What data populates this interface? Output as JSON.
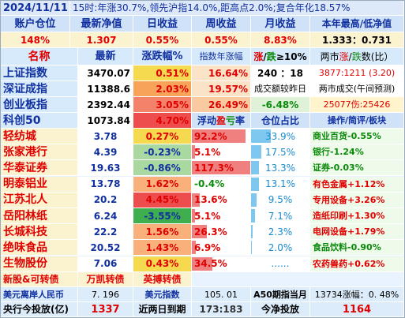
{
  "header": {
    "date": "2024/11/11",
    "summary": "15时:年涨30.7%,领先沪指14.0%,距高点2.0%;复合年化18.57%"
  },
  "account": {
    "headers": [
      "账户仓位",
      "最新净值",
      "日收益",
      "周收益",
      "月收益",
      "本年最高/低净值"
    ],
    "values": [
      "148%",
      "1.307",
      "0.55%",
      "0.55%",
      "8.83%",
      "1.333：0.731"
    ]
  },
  "index_header": {
    "name": "名称",
    "latest": "最新",
    "change_pct": "涨跌幅%",
    "year_change": "指数年涨幅",
    "up_down_prefix": "涨",
    "up_down_sep": "/",
    "up_down_mid": "跌",
    "up_down_suffix": "≥10%",
    "count_prefix": "两市",
    "count_up": "涨",
    "count_sep": "/",
    "count_down": "跌",
    "count_suffix": "数(比）"
  },
  "indices": [
    {
      "name": "上证指数",
      "latest": "3470.07",
      "chg": "0.51%",
      "year": "16.64%",
      "info": "240 ：18",
      "info2": "3877:1211 (3.20)"
    },
    {
      "name": "深证成指",
      "latest": "11388.6",
      "chg": "2.03%",
      "year": "19.57%",
      "info": "成交额较昨日",
      "info2": "两市成交(午间预测)"
    },
    {
      "name": "创业板指",
      "latest": "2392.44",
      "chg": "3.05%",
      "year": "26.49%",
      "info": "-6.48%",
      "info2": "25077伤:25426"
    },
    {
      "name": "科创50",
      "latest": "1073.84",
      "chg": "4.70%"
    }
  ],
  "holdings_header": {
    "float_prefix": "浮动",
    "float_profit": "盈",
    "float_loss": "亏",
    "float_suffix": "率",
    "position_ratio": "仓位占比",
    "ops": "操作/简评/板块"
  },
  "holdings": [
    {
      "name": "轻纺城",
      "price": "3.78",
      "chg": "0.27%",
      "float": "92.2%",
      "float_level": 0.92,
      "pos": "33.9%",
      "pos_level": 0.339,
      "sector": "商业百货-0.55%"
    },
    {
      "name": "张家港行",
      "price": "4.39",
      "chg": "-0.23%",
      "float": "5.1%",
      "float_level": 0.05,
      "pos": "17.5%",
      "pos_level": 0.175,
      "sector": "银行-1.24%"
    },
    {
      "name": "华泰证券",
      "price": "19.63",
      "chg": "-0.86%",
      "float": "117.3%",
      "float_level": 1.0,
      "pos": "13.3%",
      "pos_level": 0.133,
      "sector": "证券-0.03%"
    },
    {
      "name": "明泰铝业",
      "price": "13.78",
      "chg": "1.62%",
      "float": "-0.4%",
      "float_level": -0.01,
      "pos": "13.1%",
      "pos_level": 0.131,
      "sector": "有色金属+1.12%"
    },
    {
      "name": "江苏北人",
      "price": "20.2",
      "chg": "4.45%",
      "float": "13.6%",
      "float_level": 0.136,
      "pos": "9.5%",
      "pos_level": 0.095,
      "sector": "专用设备+3.26%"
    },
    {
      "name": "岳阳林纸",
      "price": "6.24",
      "chg": "-3.55%",
      "float": "5.1%",
      "float_level": 0.05,
      "pos": "7.1%",
      "pos_level": 0.071,
      "sector": "造纸印刷+1.30%"
    },
    {
      "name": "长城科技",
      "price": "22.2",
      "chg": "1.56%",
      "float": "26.3%",
      "float_level": 0.263,
      "pos": "2.3%",
      "pos_level": 0.023,
      "sector": "电网设备+1.79%"
    },
    {
      "name": "绝味食品",
      "price": "20.52",
      "chg": "1.43%",
      "float": "6.9%",
      "float_level": 0.069,
      "pos": "2.0%",
      "pos_level": 0.02,
      "sector": "食品饮料-0.90%"
    },
    {
      "name": "生物股份",
      "price": "7.06",
      "chg": "0.43%",
      "float": "34.5%",
      "float_level": 0.345,
      "pos": "......",
      "pos_level": 0,
      "sector": "农药兽药+0.62%"
    }
  ],
  "extras": {
    "name": "新股&可转债",
    "c1": "万凯转债",
    "c2": "英搏转债"
  },
  "footer1": {
    "l1": "美元离岸人民币",
    "v1": "7. 196",
    "l2": "美元指数",
    "v2": "105. 01",
    "l3": "A50期指当月",
    "v3": "13734涨幅：0. 48%"
  },
  "footer2": {
    "l1": "央行今投放(亿)",
    "v1": "1337",
    "l2": "近两日到期",
    "v2": "173:183",
    "l3": "今净投放",
    "v3": "1164"
  },
  "colors": {
    "up": "#e00000",
    "down": "#0a8a0a",
    "header_text": "#1030a0",
    "float_bar": "#f08080",
    "pos_bar": "#7ec8f0"
  }
}
